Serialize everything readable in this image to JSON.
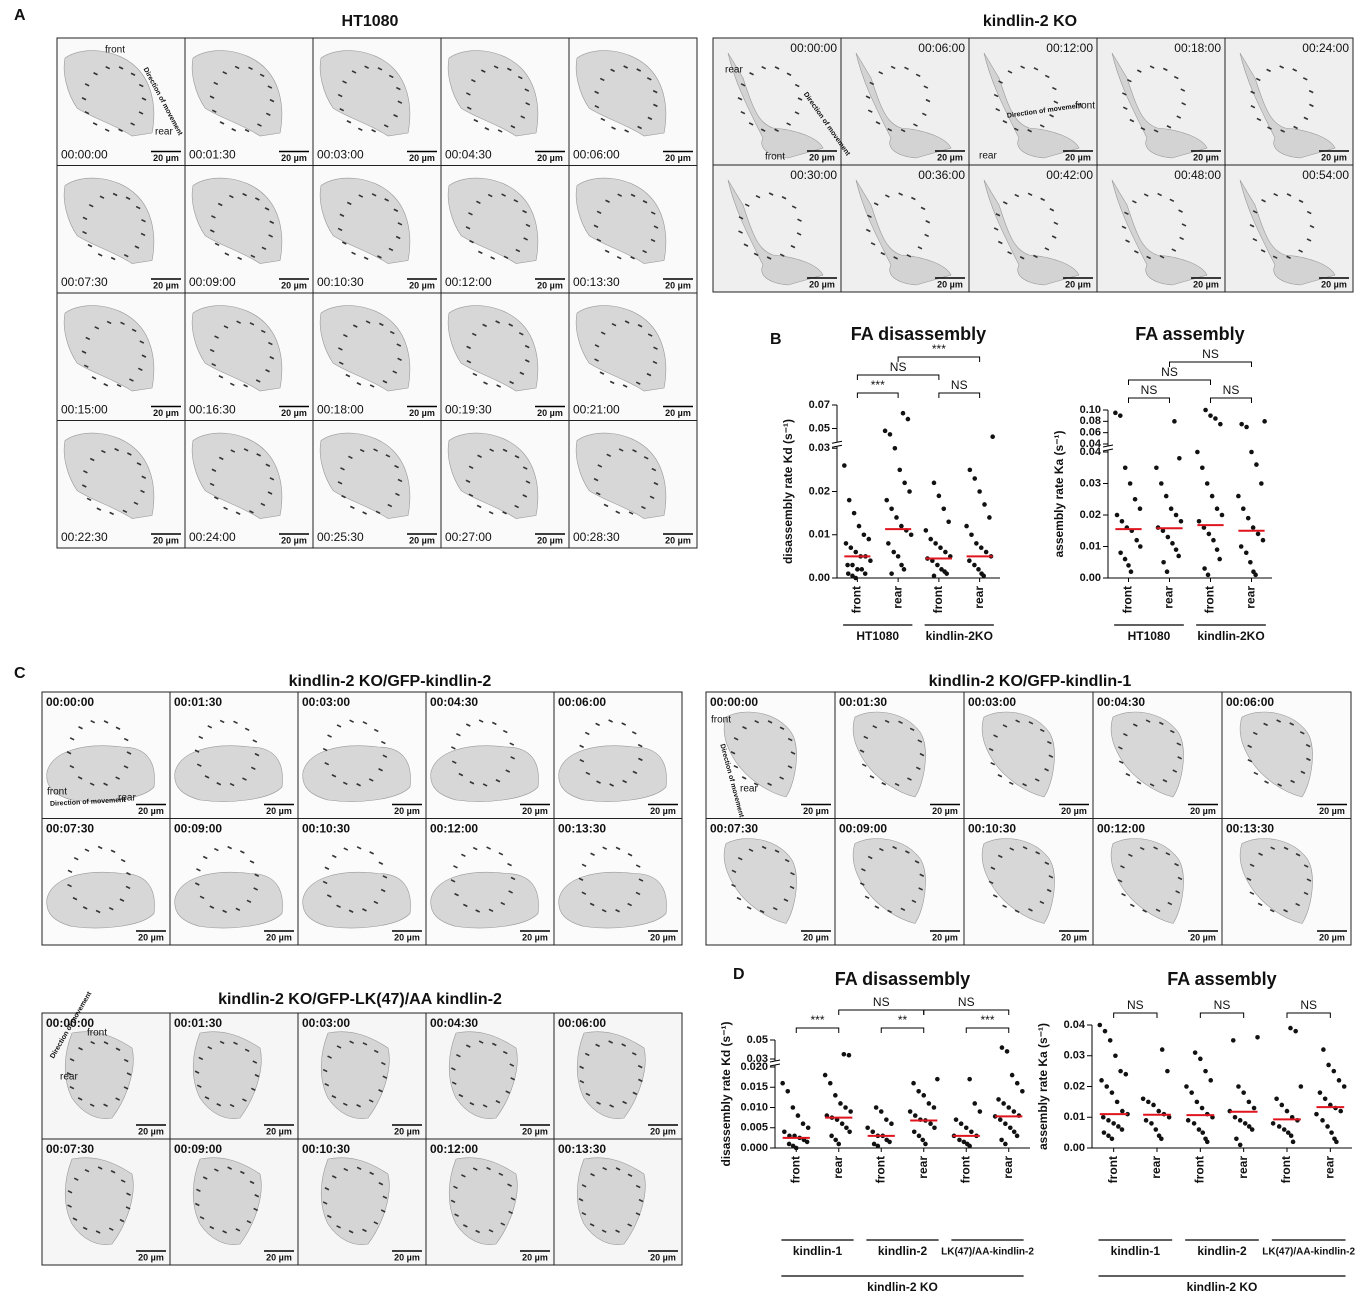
{
  "panel_labels": [
    "A",
    "B",
    "C",
    "D"
  ],
  "image_grids": [
    {
      "title": "HT1080",
      "scale_bar": "20 µm",
      "timestamps": [
        "00:00:00",
        "00:01:30",
        "00:03:00",
        "00:04:30",
        "00:06:00",
        "00:07:30",
        "00:09:00",
        "00:10:30",
        "00:12:00",
        "00:13:30",
        "00:15:00",
        "00:16:30",
        "00:18:00",
        "00:19:30",
        "00:21:00",
        "00:22:30",
        "00:24:00",
        "00:25:30",
        "00:27:00",
        "00:28:30"
      ],
      "annotations": [
        "front",
        "rear",
        "Direction of movement"
      ]
    },
    {
      "title": "kindlin-2 KO",
      "scale_bar": "20 µm",
      "timestamps": [
        "00:00:00",
        "00:06:00",
        "00:12:00",
        "00:18:00",
        "00:24:00",
        "00:30:00",
        "00:36:00",
        "00:42:00",
        "00:48:00",
        "00:54:00"
      ],
      "annotations": [
        "rear",
        "front",
        "Direction of movement",
        "Direction of movement",
        "front",
        "rear"
      ]
    },
    {
      "title": "kindlin-2 KO/GFP-kindlin-2",
      "scale_bar": "20 µm",
      "timestamps": [
        "00:00:00",
        "00:01:30",
        "00:03:00",
        "00:04:30",
        "00:06:00",
        "00:07:30",
        "00:09:00",
        "00:10:30",
        "00:12:00",
        "00:13:30"
      ],
      "annotations": [
        "front",
        "rear",
        "Direction of movement"
      ]
    },
    {
      "title": "kindlin-2 KO/GFP-kindlin-1",
      "scale_bar": "20 µm",
      "timestamps": [
        "00:00:00",
        "00:01:30",
        "00:03:00",
        "00:04:30",
        "00:06:00",
        "00:07:30",
        "00:09:00",
        "00:10:30",
        "00:12:00",
        "00:13:30"
      ],
      "annotations": [
        "front",
        "Direction of movement",
        "rear"
      ]
    },
    {
      "title": "kindlin-2 KO/GFP-LK(47)/AA kindlin-2",
      "scale_bar": "20 µm",
      "timestamps": [
        "00:00:00",
        "00:01:30",
        "00:03:00",
        "00:04:30",
        "00:06:00",
        "00:07:30",
        "00:09:00",
        "00:10:30",
        "00:12:00",
        "00:13:30"
      ],
      "annotations": [
        "Direction of movement",
        "front",
        "rear"
      ]
    }
  ],
  "chart_data": [
    {
      "type": "dotplot",
      "title": "FA disassembly",
      "ylabel": "disassembly rate Kd (s⁻¹)",
      "categories": [
        "front",
        "rear",
        "front",
        "rear"
      ],
      "groups": [
        "HT1080",
        "kindlin-2KO"
      ],
      "ylim": [
        0,
        0.07
      ],
      "ybreak": [
        0.03,
        0.04
      ],
      "yticks": [
        {
          "value": 0,
          "label": "0.00"
        },
        0.01,
        0.02,
        0.03,
        0.05,
        0.07
      ],
      "point_color": "#111111",
      "median_color": "#e0141e",
      "points": [
        [
          0.026,
          0.018,
          0.015,
          0.012,
          0.01,
          0.009,
          0.008,
          0.007,
          0.006,
          0.005,
          0.005,
          0.004,
          0.003,
          0.003,
          0.002,
          0.002,
          0.001,
          0.001,
          0.0005,
          0
        ],
        [
          0.063,
          0.058,
          0.048,
          0.045,
          0.03,
          0.025,
          0.022,
          0.02,
          0.018,
          0.016,
          0.014,
          0.012,
          0.011,
          0.01,
          0.008,
          0.006,
          0.005,
          0.003,
          0.002,
          0.001
        ],
        [
          0.022,
          0.019,
          0.016,
          0.013,
          0.011,
          0.009,
          0.008,
          0.007,
          0.006,
          0.005,
          0.0045,
          0.004,
          0.003,
          0.002,
          0.0015,
          0.001,
          0.0005
        ],
        [
          0.043,
          0.025,
          0.023,
          0.02,
          0.017,
          0.014,
          0.012,
          0.01,
          0.008,
          0.007,
          0.006,
          0.005,
          0.004,
          0.003,
          0.002,
          0.001,
          0.0005
        ]
      ],
      "medians": [
        0.005,
        0.0113,
        0.0045,
        0.005
      ],
      "significance": [
        "***",
        "NS",
        "***",
        "NS"
      ]
    },
    {
      "type": "dotplot",
      "title": "FA assembly",
      "ylabel": "assembly rate Ka (s⁻¹)",
      "categories": [
        "front",
        "rear",
        "front",
        "rear"
      ],
      "groups": [
        "HT1080",
        "kindlin-2KO"
      ],
      "ylim": [
        0,
        0.1
      ],
      "ybreak": [
        0.04,
        0.04
      ],
      "yticks": [
        {
          "value": 0,
          "label": "0.00"
        },
        0.01,
        0.02,
        0.03,
        0.04,
        0.04,
        0.06,
        0.08,
        {
          "value": 0.1,
          "label": "0.10"
        }
      ],
      "point_color": "#111111",
      "median_color": "#e0141e",
      "points": [
        [
          0.095,
          0.09,
          0.035,
          0.03,
          0.025,
          0.022,
          0.02,
          0.018,
          0.016,
          0.015,
          0.012,
          0.01,
          0.008,
          0.006,
          0.004,
          0.002
        ],
        [
          0.08,
          0.038,
          0.035,
          0.03,
          0.026,
          0.022,
          0.02,
          0.018,
          0.016,
          0.015,
          0.013,
          0.011,
          0.009,
          0.007,
          0.005,
          0.002
        ],
        [
          0.1,
          0.09,
          0.085,
          0.075,
          0.04,
          0.035,
          0.03,
          0.026,
          0.022,
          0.02,
          0.018,
          0.016,
          0.014,
          0.012,
          0.009,
          0.006,
          0.003,
          0.001
        ],
        [
          0.08,
          0.075,
          0.07,
          0.04,
          0.036,
          0.03,
          0.026,
          0.022,
          0.019,
          0.016,
          0.014,
          0.012,
          0.01,
          0.008,
          0.005,
          0.002,
          0.001
        ]
      ],
      "medians": [
        0.0155,
        0.0158,
        0.0168,
        0.015
      ],
      "significance": [
        "NS",
        "NS",
        "NS",
        "NS"
      ]
    },
    {
      "type": "dotplot",
      "title": "FA disassembly",
      "ylabel": "disassembly rate Kd (s⁻¹)",
      "categories": [
        "front",
        "rear",
        "front",
        "rear",
        "front",
        "rear"
      ],
      "groups": [
        "kindlin-1",
        "kindlin-2",
        "LK(47)/AA-kindlin-2"
      ],
      "supergroup": "kindlin-2 KO",
      "ylim": [
        0,
        0.05
      ],
      "ybreak": [
        0.02,
        0.03
      ],
      "yticks": [
        {
          "value": 0,
          "label": "0.000"
        },
        {
          "value": 0.005,
          "label": "0.005"
        },
        {
          "value": 0.01,
          "label": "0.010"
        },
        {
          "value": 0.015,
          "label": "0.015"
        },
        {
          "value": 0.02,
          "label": "0.020"
        },
        0.03,
        0.05
      ],
      "point_color": "#111111",
      "median_color": "#e0141e",
      "points": [
        [
          0.016,
          0.014,
          0.01,
          0.008,
          0.006,
          0.005,
          0.004,
          0.003,
          0.003,
          0.0025,
          0.002,
          0.0015,
          0.001,
          0.0005,
          0
        ],
        [
          0.035,
          0.034,
          0.018,
          0.016,
          0.013,
          0.011,
          0.01,
          0.009,
          0.008,
          0.0075,
          0.007,
          0.006,
          0.005,
          0.004,
          0.003,
          0.002,
          0.001
        ],
        [
          0.01,
          0.009,
          0.007,
          0.006,
          0.005,
          0.004,
          0.003,
          0.003,
          0.002,
          0.0015,
          0.001,
          0.0005
        ],
        [
          0.017,
          0.016,
          0.014,
          0.013,
          0.011,
          0.01,
          0.009,
          0.008,
          0.007,
          0.0068,
          0.006,
          0.005,
          0.004,
          0.003,
          0.002,
          0.001
        ],
        [
          0.017,
          0.011,
          0.009,
          0.007,
          0.006,
          0.005,
          0.004,
          0.003,
          0.003,
          0.002,
          0.0015,
          0.001,
          0.0005
        ],
        [
          0.042,
          0.038,
          0.018,
          0.016,
          0.014,
          0.012,
          0.011,
          0.01,
          0.009,
          0.008,
          0.0078,
          0.007,
          0.006,
          0.005,
          0.004,
          0.003,
          0.002,
          0.001
        ]
      ],
      "medians": [
        0.0025,
        0.0075,
        0.003,
        0.0068,
        0.003,
        0.0078
      ],
      "significance": [
        "***",
        "NS",
        "**",
        "NS",
        "***"
      ]
    },
    {
      "type": "dotplot",
      "title": "FA assembly",
      "ylabel": "assembly rate Ka (s⁻¹)",
      "categories": [
        "front",
        "rear",
        "front",
        "rear",
        "front",
        "rear"
      ],
      "groups": [
        "kindlin-1",
        "kindlin-2",
        "LK(47)/AA-kindlin-2"
      ],
      "supergroup": "kindlin-2 KO",
      "ylim": [
        0,
        0.04
      ],
      "yticks": [
        {
          "value": 0,
          "label": "0.00"
        },
        0.01,
        0.02,
        0.03,
        0.04
      ],
      "point_color": "#111111",
      "median_color": "#e0141e",
      "points": [
        [
          0.04,
          0.038,
          0.035,
          0.03,
          0.025,
          0.024,
          0.022,
          0.02,
          0.018,
          0.015,
          0.012,
          0.011,
          0.01,
          0.009,
          0.008,
          0.007,
          0.006,
          0.005,
          0.004,
          0.003
        ],
        [
          0.032,
          0.025,
          0.016,
          0.015,
          0.014,
          0.012,
          0.011,
          0.01,
          0.009,
          0.008,
          0.006,
          0.004,
          0.003
        ],
        [
          0.031,
          0.029,
          0.025,
          0.022,
          0.02,
          0.018,
          0.015,
          0.013,
          0.011,
          0.01,
          0.009,
          0.008,
          0.006,
          0.005,
          0.003,
          0.002
        ],
        [
          0.036,
          0.035,
          0.02,
          0.018,
          0.015,
          0.013,
          0.012,
          0.01,
          0.009,
          0.008,
          0.007,
          0.006,
          0.003,
          0.001
        ],
        [
          0.039,
          0.038,
          0.02,
          0.016,
          0.014,
          0.012,
          0.01,
          0.009,
          0.008,
          0.007,
          0.006,
          0.005,
          0.004,
          0.002
        ],
        [
          0.032,
          0.027,
          0.025,
          0.022,
          0.02,
          0.018,
          0.016,
          0.014,
          0.013,
          0.012,
          0.011,
          0.009,
          0.007,
          0.005,
          0.003,
          0.002
        ]
      ],
      "medians": [
        0.011,
        0.0108,
        0.0107,
        0.0118,
        0.0093,
        0.0133
      ],
      "significance": [
        "NS",
        "NS",
        "NS"
      ]
    }
  ]
}
